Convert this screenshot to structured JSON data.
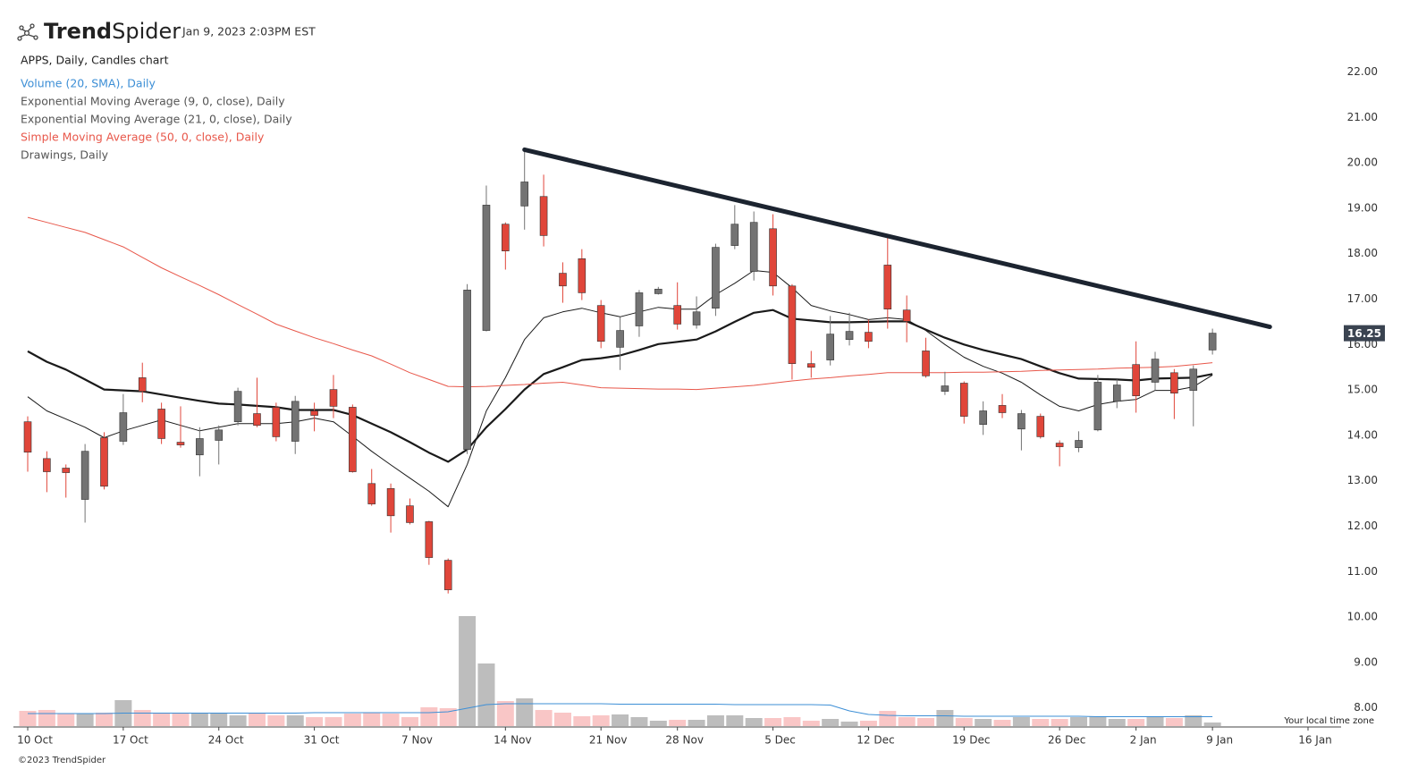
{
  "header": {
    "brand_bold": "Trend",
    "brand_light": "Spider",
    "timestamp": "Jan 9, 2023 2:03PM EST",
    "timezone_note": "Your local time zone",
    "copyright": "©2023 TrendSpider"
  },
  "chart_data": {
    "type": "candlestick",
    "title": "APPS, Daily, Candles chart",
    "categories": [
      "10 Oct",
      null,
      null,
      null,
      null,
      "17 Oct",
      null,
      null,
      null,
      null,
      "24 Oct",
      null,
      null,
      null,
      null,
      "31 Oct",
      null,
      null,
      null,
      null,
      "7 Nov",
      null,
      null,
      null,
      null,
      "14 Nov",
      null,
      null,
      null,
      null,
      "21 Nov",
      null,
      null,
      null,
      "28 Nov",
      null,
      null,
      null,
      null,
      "5 Dec",
      null,
      null,
      null,
      null,
      "12 Dec",
      null,
      null,
      null,
      null,
      "19 Dec",
      null,
      null,
      null,
      null,
      "26 Dec",
      null,
      null,
      null,
      "2 Jan",
      null,
      null,
      null,
      "9 Jan",
      null,
      null,
      null,
      null,
      "16 Jan"
    ],
    "open": [
      14.3,
      13.49,
      13.28,
      12.59,
      13.95,
      13.87,
      15.27,
      14.58,
      13.85,
      13.57,
      13.89,
      14.3,
      14.48,
      14.62,
      13.87,
      14.54,
      15.01,
      14.62,
      12.94,
      12.83,
      12.45,
      12.1,
      11.25,
      13.69,
      16.31,
      18.65,
      19.05,
      19.26,
      17.57,
      17.89,
      16.86,
      15.94,
      16.41,
      17.12,
      16.86,
      16.43,
      16.8,
      18.18,
      17.61,
      18.55,
      17.29,
      15.58,
      15.66,
      16.11,
      16.27,
      17.75,
      16.76,
      15.86,
      14.97,
      15.15,
      14.24,
      14.66,
      14.14,
      14.42,
      13.83,
      13.73,
      14.12,
      14.75,
      15.56,
      15.17,
      15.38,
      14.99,
      15.88,
      null,
      null,
      null,
      null,
      null
    ],
    "high": [
      14.42,
      13.65,
      13.36,
      13.81,
      14.07,
      14.91,
      15.6,
      14.72,
      14.64,
      14.18,
      14.22,
      15.05,
      15.27,
      14.72,
      14.87,
      14.72,
      15.33,
      14.68,
      13.26,
      12.94,
      12.61,
      12.12,
      11.29,
      17.33,
      19.5,
      18.69,
      20.31,
      19.74,
      17.81,
      18.1,
      16.98,
      16.61,
      17.2,
      17.27,
      17.37,
      17.06,
      18.22,
      19.07,
      18.93,
      18.87,
      17.33,
      15.86,
      16.63,
      16.7,
      16.55,
      18.38,
      17.08,
      16.15,
      15.4,
      15.19,
      14.75,
      14.91,
      14.56,
      14.48,
      13.89,
      14.09,
      15.33,
      15.23,
      16.07,
      15.84,
      15.46,
      15.54,
      16.35,
      null,
      null,
      null,
      null,
      null
    ],
    "low": [
      13.2,
      12.75,
      12.63,
      12.08,
      12.81,
      13.79,
      14.73,
      13.81,
      13.73,
      13.1,
      13.36,
      14.22,
      14.18,
      13.87,
      13.59,
      14.09,
      14.38,
      13.18,
      12.45,
      11.86,
      12.04,
      11.15,
      10.52,
      13.59,
      16.29,
      17.65,
      18.53,
      18.16,
      16.92,
      16.98,
      15.92,
      15.44,
      16.17,
      17.1,
      16.33,
      16.35,
      16.63,
      18.1,
      17.41,
      17.08,
      15.23,
      15.27,
      15.54,
      15.98,
      15.92,
      16.35,
      16.05,
      15.27,
      14.89,
      14.26,
      14.01,
      14.38,
      13.67,
      13.93,
      13.32,
      13.63,
      14.09,
      14.6,
      14.5,
      14.99,
      14.36,
      14.2,
      15.78,
      null,
      null,
      null,
      null,
      null
    ],
    "close": [
      13.63,
      13.2,
      13.18,
      13.65,
      12.88,
      14.5,
      14.97,
      13.93,
      13.79,
      13.93,
      14.12,
      14.97,
      14.22,
      13.97,
      14.75,
      14.44,
      14.64,
      13.2,
      12.49,
      12.23,
      12.08,
      11.31,
      10.6,
      17.2,
      19.07,
      18.06,
      19.58,
      18.4,
      17.29,
      17.14,
      16.07,
      16.31,
      17.14,
      17.22,
      16.45,
      16.72,
      18.14,
      18.65,
      18.69,
      17.29,
      15.58,
      15.5,
      16.23,
      16.29,
      16.07,
      16.78,
      16.51,
      15.31,
      15.09,
      14.42,
      14.54,
      14.5,
      14.48,
      13.97,
      13.75,
      13.89,
      15.17,
      15.11,
      14.87,
      15.68,
      14.93,
      15.46,
      16.25,
      null,
      null,
      null,
      null,
      null
    ],
    "volume": [
      1.7,
      1.8,
      1.4,
      1.4,
      1.5,
      2.9,
      1.8,
      1.5,
      1.4,
      1.5,
      1.5,
      1.2,
      1.4,
      1.2,
      1.2,
      1.0,
      1.0,
      1.4,
      1.5,
      1.4,
      1.0,
      2.1,
      2.0,
      12.3,
      7.0,
      2.8,
      3.1,
      1.8,
      1.5,
      1.1,
      1.2,
      1.3,
      1.0,
      0.6,
      0.7,
      0.7,
      1.2,
      1.2,
      0.9,
      0.9,
      1.0,
      0.6,
      0.8,
      0.5,
      0.6,
      1.7,
      1.0,
      0.9,
      1.8,
      0.9,
      0.8,
      0.7,
      1.0,
      0.8,
      0.8,
      1.0,
      1.1,
      0.8,
      0.8,
      1.1,
      0.9,
      1.2,
      0.4,
      null,
      null,
      null,
      null,
      null
    ],
    "up_color": "#737373",
    "down_color": "#e0463a",
    "volume_up_color": "#bdbdbd",
    "volume_down_color": "#f9c6c6",
    "ylim": [
      7.6,
      22.7
    ],
    "yticks": [
      {
        "value": 8,
        "label": "8.00"
      },
      {
        "value": 9,
        "label": "9.00"
      },
      {
        "value": 10,
        "label": "10.00"
      },
      {
        "value": 11,
        "label": "11.00"
      },
      {
        "value": 12,
        "label": "12.00"
      },
      {
        "value": 13,
        "label": "13.00"
      },
      {
        "value": 14,
        "label": "14.00"
      },
      {
        "value": 15,
        "label": "15.00"
      },
      {
        "value": 16,
        "label": "16.00"
      },
      {
        "value": 17,
        "label": "17.00"
      },
      {
        "value": 18,
        "label": "18.00"
      },
      {
        "value": 19,
        "label": "19.00"
      },
      {
        "value": 20,
        "label": "20.00"
      },
      {
        "value": 21,
        "label": "21.00"
      },
      {
        "value": 22,
        "label": "22.00"
      }
    ],
    "grid": false,
    "indicators": [
      {
        "name": "Volume (20, SMA), Daily",
        "color": "#3d8fd6",
        "label_color": "#3d8fd6",
        "pane": "volume",
        "line_width": 1,
        "values": [
          1.4,
          1.4,
          1.4,
          1.4,
          1.4,
          1.45,
          1.45,
          1.45,
          1.45,
          1.45,
          1.45,
          1.45,
          1.45,
          1.45,
          1.45,
          1.5,
          1.5,
          1.5,
          1.5,
          1.5,
          1.5,
          1.5,
          1.6,
          2.0,
          2.4,
          2.5,
          2.5,
          2.5,
          2.5,
          2.5,
          2.5,
          2.45,
          2.45,
          2.45,
          2.45,
          2.45,
          2.45,
          2.4,
          2.4,
          2.4,
          2.4,
          2.4,
          2.35,
          1.7,
          1.3,
          1.2,
          1.15,
          1.15,
          1.15,
          1.1,
          1.1,
          1.1,
          1.1,
          1.1,
          1.1,
          1.1,
          1.05,
          1.05,
          1.05,
          1.05,
          1.05,
          1.05,
          1.05,
          null,
          null,
          null,
          null,
          null
        ]
      },
      {
        "name": "Exponential Moving Average (9, 0, close), Daily",
        "color": "#1a1a1a",
        "label_color": "#555555",
        "pane": "price",
        "line_width": 1,
        "values": [
          14.85,
          14.54,
          14.36,
          14.18,
          13.95,
          14.1,
          14.22,
          14.34,
          14.22,
          14.1,
          14.18,
          14.26,
          14.26,
          14.26,
          14.3,
          14.38,
          14.3,
          13.98,
          13.65,
          13.35,
          13.06,
          12.77,
          12.43,
          13.36,
          14.54,
          15.27,
          16.11,
          16.59,
          16.72,
          16.8,
          16.7,
          16.61,
          16.72,
          16.82,
          16.78,
          16.78,
          17.1,
          17.35,
          17.63,
          17.59,
          17.25,
          16.86,
          16.74,
          16.66,
          16.55,
          16.59,
          16.55,
          16.31,
          16.0,
          15.72,
          15.52,
          15.37,
          15.17,
          14.89,
          14.64,
          14.54,
          14.68,
          14.75,
          14.79,
          14.99,
          14.99,
          15.07,
          15.33,
          null,
          null,
          null,
          null,
          null
        ]
      },
      {
        "name": "Exponential Moving Average (21, 0, close), Daily",
        "color": "#1a1a1a",
        "label_color": "#555555",
        "pane": "price",
        "line_width": 2.2,
        "values": [
          15.85,
          15.62,
          15.45,
          15.23,
          15.01,
          14.99,
          14.97,
          14.9,
          14.83,
          14.76,
          14.7,
          14.68,
          14.65,
          14.62,
          14.56,
          14.56,
          14.56,
          14.45,
          14.26,
          14.07,
          13.85,
          13.62,
          13.42,
          13.69,
          14.18,
          14.58,
          15.01,
          15.35,
          15.5,
          15.66,
          15.7,
          15.76,
          15.88,
          16.01,
          16.06,
          16.11,
          16.29,
          16.5,
          16.7,
          16.76,
          16.57,
          16.53,
          16.49,
          16.49,
          16.5,
          16.51,
          16.51,
          16.33,
          16.15,
          16.0,
          15.88,
          15.78,
          15.68,
          15.52,
          15.37,
          15.25,
          15.24,
          15.23,
          15.21,
          15.25,
          15.26,
          15.27,
          15.35,
          null,
          null,
          null,
          null,
          null
        ]
      },
      {
        "name": "Simple Moving Average (50, 0, close), Daily",
        "color": "#e8574a",
        "label_color": "#e8574a",
        "pane": "price",
        "line_width": 1,
        "values": [
          18.8,
          18.69,
          18.58,
          18.47,
          18.31,
          18.15,
          17.92,
          17.69,
          17.49,
          17.3,
          17.1,
          16.88,
          16.67,
          16.45,
          16.3,
          16.15,
          16.02,
          15.88,
          15.75,
          15.57,
          15.38,
          15.23,
          15.08,
          15.07,
          15.08,
          15.1,
          15.12,
          15.15,
          15.17,
          15.11,
          15.05,
          15.04,
          15.03,
          15.02,
          15.02,
          15.01,
          15.04,
          15.07,
          15.1,
          15.15,
          15.2,
          15.24,
          15.27,
          15.31,
          15.34,
          15.38,
          15.38,
          15.38,
          15.38,
          15.39,
          15.39,
          15.4,
          15.41,
          15.43,
          15.44,
          15.45,
          15.46,
          15.48,
          15.49,
          15.5,
          15.52,
          15.56,
          15.6,
          null,
          null,
          null,
          null,
          null
        ]
      },
      {
        "name": "Drawings, Daily",
        "color": "#1c2430",
        "label_color": "#555555",
        "pane": "price",
        "line_width": 5,
        "x": [
          26,
          65
        ],
        "values": [
          20.29,
          16.39
        ]
      }
    ]
  }
}
